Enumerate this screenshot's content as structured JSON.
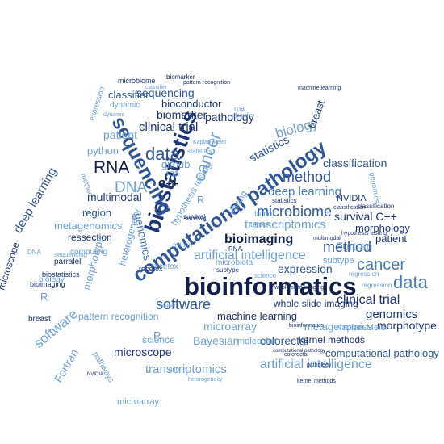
{
  "palette": {
    "navy": "#0f1e4a",
    "dark": "#1d3472",
    "mid": "#2f5597",
    "blue": "#4a79b8",
    "light": "#6e9fd4",
    "pale": "#9fc2e6",
    "faint": "#c3d8ee"
  },
  "words": [
    {
      "text": "bioinformatics",
      "shade": "navy"
    },
    {
      "text": "computational pathology",
      "shade": "mid"
    },
    {
      "text": "biostatistics",
      "shade": "dark"
    },
    {
      "text": "sequencing",
      "shade": "mid"
    },
    {
      "text": "data",
      "shade": "mid"
    },
    {
      "text": "data",
      "shade": "blue"
    },
    {
      "text": "cancer",
      "shade": "light"
    },
    {
      "text": "cancer",
      "shade": "blue"
    },
    {
      "text": "biology",
      "shade": "light"
    },
    {
      "text": "RNA",
      "shade": "navy"
    },
    {
      "text": "DNA",
      "shade": "light"
    },
    {
      "text": "method",
      "shade": "mid"
    },
    {
      "text": "method",
      "shade": "mid"
    },
    {
      "text": "software",
      "shade": "mid"
    },
    {
      "text": "software",
      "shade": "light"
    },
    {
      "text": "microbiome",
      "shade": "mid"
    },
    {
      "text": "bioimaging",
      "shade": "navy"
    },
    {
      "text": "artificial intelligence",
      "shade": "light"
    },
    {
      "text": "artificial intelligence",
      "shade": "light"
    },
    {
      "text": "clinical trial",
      "shade": "dark"
    },
    {
      "text": "clinical trial",
      "shade": "dark"
    },
    {
      "text": "transcriptomics",
      "shade": "light"
    },
    {
      "text": "transcriptomics",
      "shade": "light"
    },
    {
      "text": "deep learning",
      "shade": "blue"
    },
    {
      "text": "deep learning",
      "shade": "mid"
    },
    {
      "text": "biomarker",
      "shade": "dark"
    },
    {
      "text": "pathology",
      "shade": "dark"
    },
    {
      "text": "sequencing",
      "shade": "mid"
    },
    {
      "text": "classifier",
      "shade": "mid"
    },
    {
      "text": "bioconductor",
      "shade": "dark"
    },
    {
      "text": "dynamic",
      "shade": "light"
    },
    {
      "text": "patient",
      "shade": "light"
    },
    {
      "text": "patient",
      "shade": "dark"
    },
    {
      "text": "python",
      "shade": "light"
    },
    {
      "text": "github",
      "shade": "light"
    },
    {
      "text": "rna",
      "shade": "light"
    },
    {
      "text": "C++",
      "shade": "navy"
    },
    {
      "text": "multimodal",
      "shade": "dark"
    },
    {
      "text": "genomics",
      "shade": "blue"
    },
    {
      "text": "genomics",
      "shade": "dark"
    },
    {
      "text": "region",
      "shade": "mid"
    },
    {
      "text": "metagenomics",
      "shade": "light"
    },
    {
      "text": "metagenomics",
      "shade": "light"
    },
    {
      "text": "statistics",
      "shade": "mid"
    },
    {
      "text": "classification",
      "shade": "mid"
    },
    {
      "text": "morphology",
      "shade": "dark"
    },
    {
      "text": "survival C++",
      "shade": "dark"
    },
    {
      "text": "Fortran",
      "shade": "light"
    },
    {
      "text": "Fortran",
      "shade": "light"
    },
    {
      "text": "expression",
      "shade": "mid"
    },
    {
      "text": "microscope",
      "shade": "dark"
    },
    {
      "text": "microscope",
      "shade": "dark"
    },
    {
      "text": "ressection",
      "shade": "dark"
    },
    {
      "text": "heterogeneity",
      "shade": "light"
    },
    {
      "text": "morphotype",
      "shade": "light"
    },
    {
      "text": "morphotype",
      "shade": "dark"
    },
    {
      "text": "microarray",
      "shade": "light"
    },
    {
      "text": "microarray",
      "shade": "light"
    },
    {
      "text": "whole slide imaging",
      "shade": "dark"
    },
    {
      "text": "machine learning",
      "shade": "dark"
    },
    {
      "text": "pattern recognition",
      "shade": "light"
    },
    {
      "text": "colorectal",
      "shade": "mid"
    },
    {
      "text": "Bayesian",
      "shade": "light"
    },
    {
      "text": "kernel methods",
      "shade": "dark"
    },
    {
      "text": "computational pathology",
      "shade": "mid"
    },
    {
      "text": "Kaplan-Meier",
      "shade": "light"
    },
    {
      "text": "science",
      "shade": "light"
    },
    {
      "text": "pathways",
      "shade": "light"
    },
    {
      "text": "hypothesis testing",
      "shade": "light"
    },
    {
      "text": "recetox",
      "shade": "light"
    },
    {
      "text": "tumor",
      "shade": "light"
    },
    {
      "text": "microbiota",
      "shade": "light"
    },
    {
      "text": "parralel",
      "shade": "dark"
    },
    {
      "text": "computing",
      "shade": "light"
    },
    {
      "text": "breast",
      "shade": "dark"
    },
    {
      "text": "breast",
      "shade": "dark"
    },
    {
      "text": "R",
      "shade": "light"
    },
    {
      "text": "R",
      "shade": "light"
    },
    {
      "text": "R",
      "shade": "light"
    },
    {
      "text": "NVIDIA",
      "shade": "dark"
    },
    {
      "text": "testing",
      "shade": "light"
    },
    {
      "text": "subtype",
      "shade": "light"
    },
    {
      "text": "biomarker",
      "shade": "navy"
    },
    {
      "text": "microbiome",
      "shade": "dark"
    },
    {
      "text": "pattern recognition",
      "shade": "dark"
    },
    {
      "text": "classifier",
      "shade": "light"
    },
    {
      "text": "rna",
      "shade": "light"
    },
    {
      "text": "classifier",
      "shade": "light"
    },
    {
      "text": "machine learning",
      "shade": "dark"
    },
    {
      "text": "expression",
      "shade": "light"
    },
    {
      "text": "method",
      "shade": "light"
    },
    {
      "text": "statistics",
      "shade": "light"
    },
    {
      "text": "survival",
      "shade": "dark"
    },
    {
      "text": "tumor",
      "shade": "light"
    },
    {
      "text": "heterogeneity",
      "shade": "light"
    },
    {
      "text": "science",
      "shade": "light"
    },
    {
      "text": "pathology",
      "shade": "dark"
    },
    {
      "text": "bioinformatics",
      "shade": "dark"
    },
    {
      "text": "colorectal",
      "shade": "dark"
    },
    {
      "text": "regression",
      "shade": "light"
    },
    {
      "text": "python",
      "shade": "light"
    },
    {
      "text": "github",
      "shade": "light"
    },
    {
      "text": "NVIDIA",
      "shade": "dark"
    },
    {
      "text": "kernel methods",
      "shade": "dark"
    },
    {
      "text": "multimodal",
      "shade": "dark"
    },
    {
      "text": "genomics",
      "shade": "light"
    },
    {
      "text": "classification",
      "shade": "dark"
    },
    {
      "text": "RNA",
      "shade": "dark"
    },
    {
      "text": "biostatistics",
      "shade": "dark"
    },
    {
      "text": "biology",
      "shade": "light"
    },
    {
      "text": "bioimaging",
      "shade": "dark"
    },
    {
      "text": "sequencing",
      "shade": "light"
    },
    {
      "text": "DNA",
      "shade": "light"
    },
    {
      "text": "whole slide imaging",
      "shade": "dark"
    },
    {
      "text": "dynamic",
      "shade": "light"
    },
    {
      "text": "region",
      "shade": "light"
    },
    {
      "text": "hypothesis testing",
      "shade": "dark"
    },
    {
      "text": "statistics",
      "shade": "dark"
    },
    {
      "text": "survival",
      "shade": "dark"
    },
    {
      "text": "classification",
      "shade": "dark"
    },
    {
      "text": "computational pathology",
      "shade": "dark"
    },
    {
      "text": "molecular",
      "shade": "light"
    },
    {
      "text": "Kaplan-Meier",
      "shade": "light"
    },
    {
      "text": "recetox",
      "shade": "dark"
    },
    {
      "text": "subtype",
      "shade": "dark"
    },
    {
      "text": "regression",
      "shade": "light"
    }
  ]
}
